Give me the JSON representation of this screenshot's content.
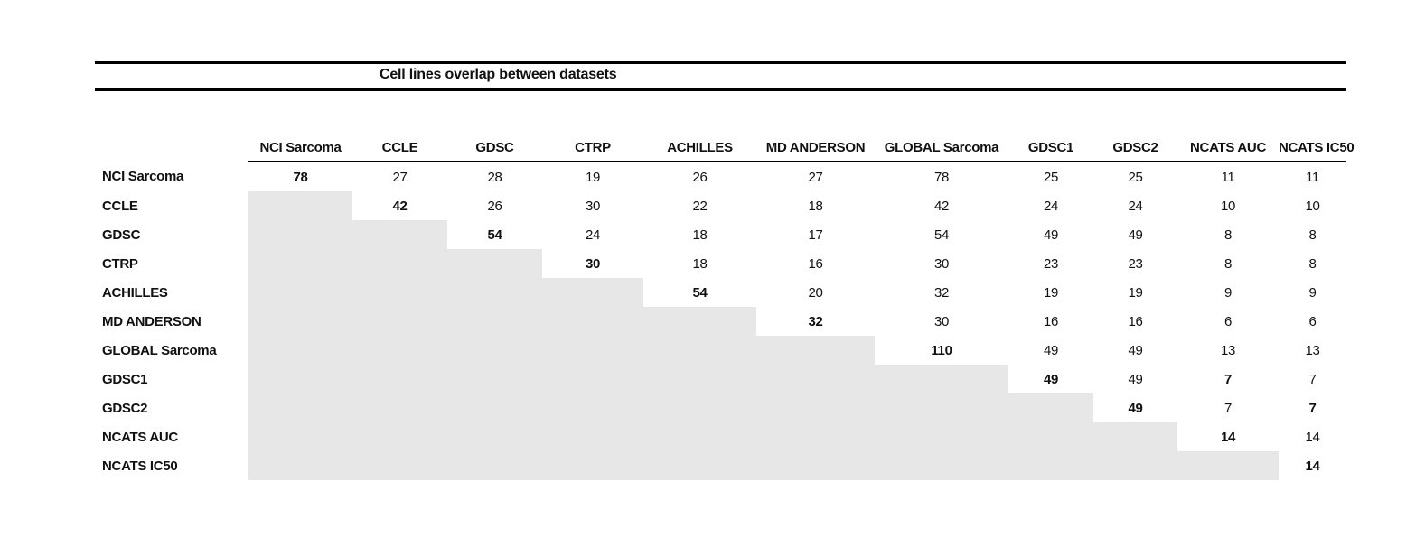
{
  "title": "Cell lines overlap between datasets",
  "colors": {
    "shade": "#e7e7e7",
    "rule": "#000000",
    "text": "#111111"
  },
  "chart_data": {
    "type": "table",
    "title": "Cell lines overlap between datasets",
    "columns": [
      "NCI Sarcoma",
      "CCLE",
      "GDSC",
      "CTRP",
      "ACHILLES",
      "MD ANDERSON",
      "GLOBAL Sarcoma",
      "GDSC1",
      "GDSC2",
      "NCATS AUC",
      "NCATS IC50"
    ],
    "rows": [
      "NCI Sarcoma",
      "CCLE",
      "GDSC",
      "CTRP",
      "ACHILLES",
      "MD ANDERSON",
      "GLOBAL Sarcoma",
      "GDSC1",
      "GDSC2",
      "NCATS AUC",
      "NCATS IC50"
    ],
    "matrix": [
      [
        78,
        27,
        28,
        19,
        26,
        27,
        78,
        25,
        25,
        11,
        11
      ],
      [
        null,
        42,
        26,
        30,
        22,
        18,
        42,
        24,
        24,
        10,
        10
      ],
      [
        null,
        null,
        54,
        24,
        18,
        17,
        54,
        49,
        49,
        8,
        8
      ],
      [
        null,
        null,
        null,
        30,
        18,
        16,
        30,
        23,
        23,
        8,
        8
      ],
      [
        null,
        null,
        null,
        null,
        54,
        20,
        32,
        19,
        19,
        9,
        9
      ],
      [
        null,
        null,
        null,
        null,
        null,
        32,
        30,
        16,
        16,
        6,
        6
      ],
      [
        null,
        null,
        null,
        null,
        null,
        null,
        110,
        49,
        49,
        13,
        13
      ],
      [
        null,
        null,
        null,
        null,
        null,
        null,
        null,
        49,
        49,
        7,
        7
      ],
      [
        null,
        null,
        null,
        null,
        null,
        null,
        null,
        null,
        49,
        7,
        7
      ],
      [
        null,
        null,
        null,
        null,
        null,
        null,
        null,
        null,
        null,
        14,
        14
      ],
      [
        null,
        null,
        null,
        null,
        null,
        null,
        null,
        null,
        null,
        null,
        14
      ]
    ],
    "bold_cells": [
      [
        0,
        0
      ],
      [
        1,
        1
      ],
      [
        2,
        2
      ],
      [
        3,
        3
      ],
      [
        4,
        4
      ],
      [
        5,
        5
      ],
      [
        6,
        6
      ],
      [
        7,
        7
      ],
      [
        7,
        9
      ],
      [
        8,
        8
      ],
      [
        8,
        10
      ],
      [
        9,
        9
      ],
      [
        10,
        10
      ]
    ],
    "shaded_lower_triangle": true,
    "layout_hints": {
      "grid": false,
      "legend": "none",
      "double_rule_above_title": true,
      "header_underline": true
    }
  }
}
